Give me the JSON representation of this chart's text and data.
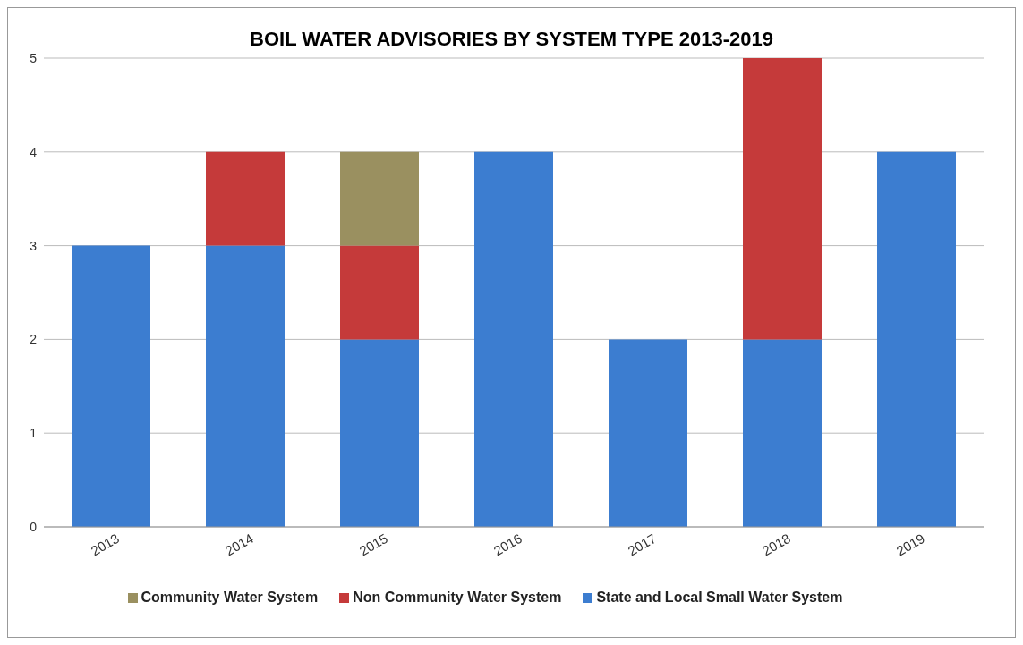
{
  "chart_data": {
    "type": "bar",
    "title": "BOIL WATER ADVISORIES BY SYSTEM TYPE 2013-2019",
    "categories": [
      "2013",
      "2014",
      "2015",
      "2016",
      "2017",
      "2018",
      "2019"
    ],
    "series": [
      {
        "name": "State and Local Small Water System",
        "color": "#3c7dd0",
        "values": [
          3,
          3,
          2,
          4,
          2,
          2,
          4
        ]
      },
      {
        "name": "Non Community Water System",
        "color": "#c53a3a",
        "values": [
          0,
          1,
          1,
          0,
          0,
          3,
          0
        ]
      },
      {
        "name": "Community Water System",
        "color": "#9a9060",
        "values": [
          0,
          0,
          1,
          0,
          0,
          0,
          0
        ]
      }
    ],
    "stacked": true,
    "ylim": [
      0,
      5
    ],
    "yticks": [
      0,
      1,
      2,
      3,
      4,
      5
    ],
    "grid": "y",
    "legend": "bottom"
  }
}
